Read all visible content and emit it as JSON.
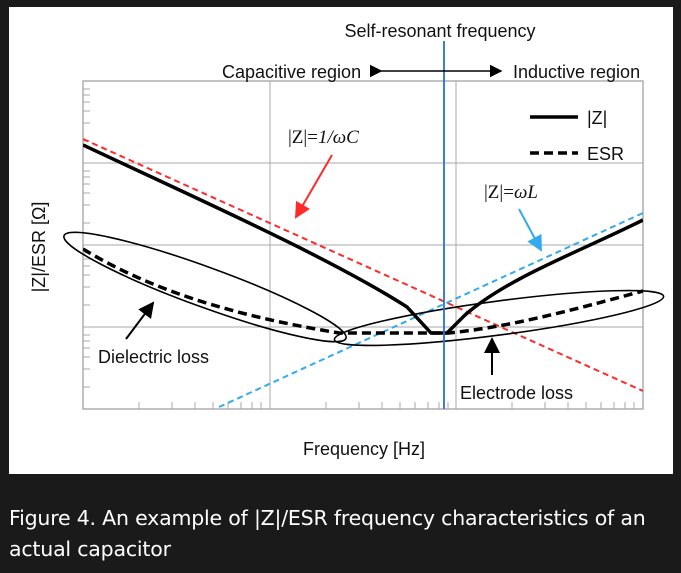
{
  "figure": {
    "title": "Self-resonant frequency",
    "capacitive_region": "Capacitive region",
    "inductive_region": "Inductive region",
    "x_label": "Frequency [Hz]",
    "y_label": "|Z|/ESR [Ω]",
    "legend": {
      "z": "|Z|",
      "esr": "ESR"
    },
    "annotations": {
      "z_capacitive_prefix": "|Z|=",
      "z_capacitive_expr": "1/ωC",
      "z_inductive_prefix": "|Z|=",
      "z_inductive_expr": "ωL",
      "dielectric_loss": "Dielectric loss",
      "electrode_loss": "Electrode loss"
    },
    "colors": {
      "z_curve": "#000000",
      "capacitive_asymptote": "#ff2a2a",
      "inductive_asymptote": "#33aaee",
      "resonance_line": "#2a6fd6",
      "grid": "#aaaaaa"
    }
  },
  "caption": "Figure 4. An example of |Z|/ESR frequency characteristics of an actual capacitor"
}
